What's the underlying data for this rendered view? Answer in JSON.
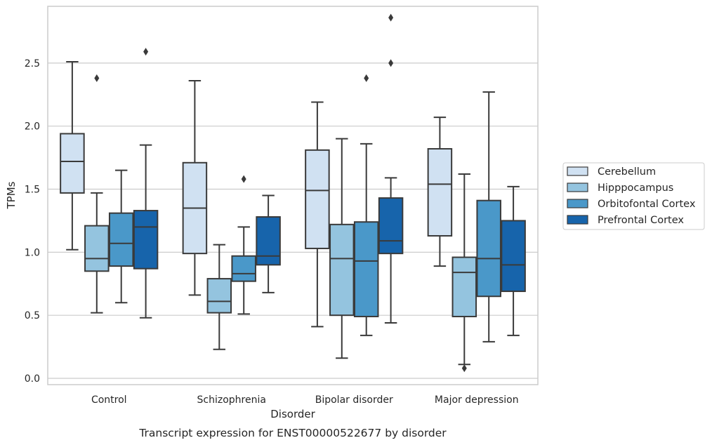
{
  "chart_data": {
    "type": "box",
    "title": "",
    "caption": "Transcript expression for ENST00000522677 by disorder",
    "xlabel": "Disorder",
    "ylabel": "TPMs",
    "ylim": [
      -0.05,
      2.95
    ],
    "yticks": [
      "0.0",
      "0.5",
      "1.0",
      "1.5",
      "2.0",
      "2.5"
    ],
    "ytick_values": [
      0.0,
      0.5,
      1.0,
      1.5,
      2.0,
      2.5
    ],
    "grid": "horizontal",
    "legend_placement": "right",
    "categories": [
      "Control",
      "Schizophrenia",
      "Bipolar disorder",
      "Major depression"
    ],
    "series": [
      {
        "name": "Cerebellum",
        "color": "#d0e1f2",
        "boxes": [
          {
            "whislo": 1.02,
            "q1": 1.47,
            "med": 1.72,
            "q3": 1.94,
            "whishi": 2.51,
            "fliers": []
          },
          {
            "whislo": 0.66,
            "q1": 0.99,
            "med": 1.35,
            "q3": 1.71,
            "whishi": 2.36,
            "fliers": []
          },
          {
            "whislo": 0.41,
            "q1": 1.03,
            "med": 1.49,
            "q3": 1.81,
            "whishi": 2.19,
            "fliers": []
          },
          {
            "whislo": 0.89,
            "q1": 1.13,
            "med": 1.54,
            "q3": 1.82,
            "whishi": 2.07,
            "fliers": []
          }
        ]
      },
      {
        "name": "Hipppocampus",
        "color": "#94c4df",
        "boxes": [
          {
            "whislo": 0.52,
            "q1": 0.85,
            "med": 0.95,
            "q3": 1.21,
            "whishi": 1.47,
            "fliers": [
              2.38
            ]
          },
          {
            "whislo": 0.23,
            "q1": 0.52,
            "med": 0.61,
            "q3": 0.79,
            "whishi": 1.06,
            "fliers": []
          },
          {
            "whislo": 0.16,
            "q1": 0.5,
            "med": 0.95,
            "q3": 1.22,
            "whishi": 1.9,
            "fliers": []
          },
          {
            "whislo": 0.11,
            "q1": 0.49,
            "med": 0.84,
            "q3": 0.96,
            "whishi": 1.62,
            "fliers": [
              0.08
            ]
          }
        ]
      },
      {
        "name": "Orbitofontal Cortex",
        "color": "#4a98c9",
        "boxes": [
          {
            "whislo": 0.6,
            "q1": 0.89,
            "med": 1.07,
            "q3": 1.31,
            "whishi": 1.65,
            "fliers": []
          },
          {
            "whislo": 0.51,
            "q1": 0.77,
            "med": 0.83,
            "q3": 0.97,
            "whishi": 1.2,
            "fliers": [
              1.58
            ]
          },
          {
            "whislo": 0.34,
            "q1": 0.49,
            "med": 0.93,
            "q3": 1.24,
            "whishi": 1.86,
            "fliers": [
              2.38
            ]
          },
          {
            "whislo": 0.29,
            "q1": 0.65,
            "med": 0.95,
            "q3": 1.41,
            "whishi": 2.27,
            "fliers": []
          }
        ]
      },
      {
        "name": "Prefrontal Cortex",
        "color": "#1764ab",
        "boxes": [
          {
            "whislo": 0.48,
            "q1": 0.87,
            "med": 1.2,
            "q3": 1.33,
            "whishi": 1.85,
            "fliers": [
              2.59
            ]
          },
          {
            "whislo": 0.68,
            "q1": 0.9,
            "med": 0.97,
            "q3": 1.28,
            "whishi": 1.45,
            "fliers": []
          },
          {
            "whislo": 0.44,
            "q1": 0.99,
            "med": 1.09,
            "q3": 1.43,
            "whishi": 1.59,
            "fliers": [
              2.5,
              2.86
            ]
          },
          {
            "whislo": 0.34,
            "q1": 0.69,
            "med": 0.9,
            "q3": 1.25,
            "whishi": 1.52,
            "fliers": []
          }
        ]
      }
    ]
  }
}
